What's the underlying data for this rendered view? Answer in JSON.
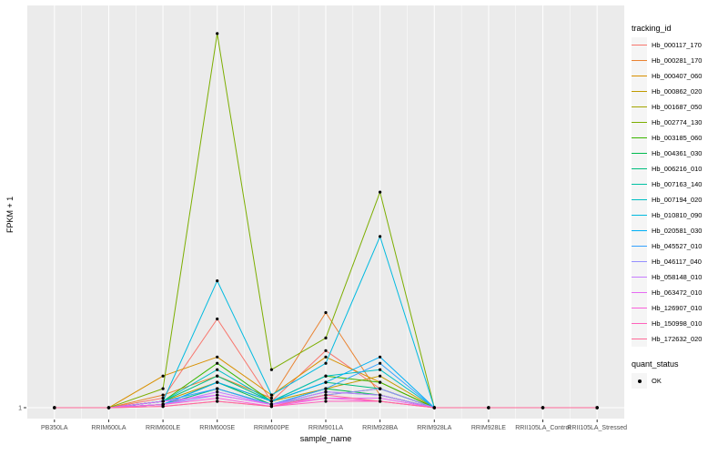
{
  "figure": {
    "y_axis_title": "FPKM + 1",
    "x_axis_title": "sample_name",
    "y_tick_label": "1",
    "panel_bg": "#EBEBEB",
    "grid_color": "#FFFFFF",
    "tick_color": "#333333",
    "tick_label_color": "#4D4D4D",
    "point_color": "#000000"
  },
  "legend": {
    "color_title": "tracking_id",
    "shape_title": "quant_status",
    "shape_items": [
      {
        "label": "OK"
      }
    ]
  },
  "chart_data": {
    "type": "line",
    "title": "",
    "xlabel": "sample_name",
    "ylabel": "FPKM + 1",
    "grid": true,
    "legend_position": "right",
    "y_ticks_shown": [
      "1"
    ],
    "ylim": [
      1,
      63
    ],
    "categories": [
      "PB350LA",
      "RRIM600LA",
      "RRIM600LE",
      "RRIM600SE",
      "RRIM600PE",
      "RRIM901LA",
      "RRIM928BA",
      "RRIM928LA",
      "RRIM928LE",
      "RRII105LA_Control",
      "RRII105LA_Stressed"
    ],
    "series": [
      {
        "name": "Hb_000117_170",
        "color": "#F8766D",
        "values": [
          1,
          1,
          2.5,
          15,
          2,
          10,
          4,
          1,
          1,
          1,
          1
        ]
      },
      {
        "name": "Hb_000281_170",
        "color": "#EA8331",
        "values": [
          1,
          1,
          3,
          6,
          2.5,
          16,
          3,
          1,
          1,
          1,
          1
        ]
      },
      {
        "name": "Hb_000407_060",
        "color": "#D89000",
        "values": [
          1,
          1,
          6,
          9,
          3,
          9,
          5,
          1,
          1,
          1,
          1
        ]
      },
      {
        "name": "Hb_000862_020",
        "color": "#C09B00",
        "values": [
          1,
          1,
          2,
          5,
          2,
          4,
          6,
          1,
          1,
          1,
          1
        ]
      },
      {
        "name": "Hb_001687_050",
        "color": "#A3A500",
        "values": [
          1,
          1,
          1.5,
          4,
          1.5,
          3,
          4,
          1,
          1,
          1,
          1
        ]
      },
      {
        "name": "Hb_002774_130",
        "color": "#7CAE00",
        "values": [
          1,
          1,
          4,
          60,
          7,
          12,
          35,
          1,
          1,
          1,
          1
        ]
      },
      {
        "name": "Hb_003185_060",
        "color": "#39B600",
        "values": [
          1,
          1,
          2,
          8,
          2,
          6,
          5,
          1,
          1,
          1,
          1
        ]
      },
      {
        "name": "Hb_004361_030",
        "color": "#00BB4E",
        "values": [
          1,
          1,
          1.5,
          5,
          1.5,
          4,
          3,
          1,
          1,
          1,
          1
        ]
      },
      {
        "name": "Hb_006216_010",
        "color": "#00BF7D",
        "values": [
          1,
          1,
          2,
          6,
          2,
          5,
          4,
          1,
          1,
          1,
          1
        ]
      },
      {
        "name": "Hb_007163_140",
        "color": "#00C1A3",
        "values": [
          1,
          1,
          1.5,
          4,
          1.5,
          3.5,
          3,
          1,
          1,
          1,
          1
        ]
      },
      {
        "name": "Hb_007194_020",
        "color": "#00BFC4",
        "values": [
          1,
          1,
          2,
          7,
          2,
          6,
          7,
          1,
          1,
          1,
          1
        ]
      },
      {
        "name": "Hb_010810_090",
        "color": "#00BAE0",
        "values": [
          1,
          1,
          2,
          21,
          3,
          8,
          28,
          1,
          1,
          1,
          1
        ]
      },
      {
        "name": "Hb_020581_030",
        "color": "#00B0F6",
        "values": [
          1,
          1,
          1.5,
          5,
          2,
          5,
          9,
          1,
          1,
          1,
          1
        ]
      },
      {
        "name": "Hb_045527_010",
        "color": "#35A2FF",
        "values": [
          1,
          1,
          2,
          4,
          1.5,
          4,
          8,
          1,
          1,
          1,
          1
        ]
      },
      {
        "name": "Hb_046117_040",
        "color": "#9590FF",
        "values": [
          1,
          1,
          1.5,
          3,
          1.5,
          3,
          4,
          1,
          1,
          1,
          1
        ]
      },
      {
        "name": "Hb_058148_010",
        "color": "#C77CFF",
        "values": [
          1,
          1,
          1.5,
          3.5,
          1.5,
          3.5,
          3,
          1,
          1,
          1,
          1
        ]
      },
      {
        "name": "Hb_063472_010",
        "color": "#E76BF3",
        "values": [
          1,
          1,
          2,
          3,
          1.5,
          2.5,
          2.5,
          1,
          1,
          1,
          1
        ]
      },
      {
        "name": "Hb_126907_010",
        "color": "#FA62DB",
        "values": [
          1,
          1,
          1.5,
          2.5,
          1.2,
          2.5,
          2,
          1,
          1,
          1,
          1
        ]
      },
      {
        "name": "Hb_150998_010",
        "color": "#FF62BC",
        "values": [
          1,
          1,
          1.2,
          2,
          1.2,
          2,
          2,
          1,
          1,
          1,
          1
        ]
      },
      {
        "name": "Hb_172632_020",
        "color": "#FF6A98",
        "values": [
          1,
          1,
          1.2,
          2,
          1.2,
          3,
          2,
          1,
          1,
          1,
          1
        ]
      }
    ]
  }
}
